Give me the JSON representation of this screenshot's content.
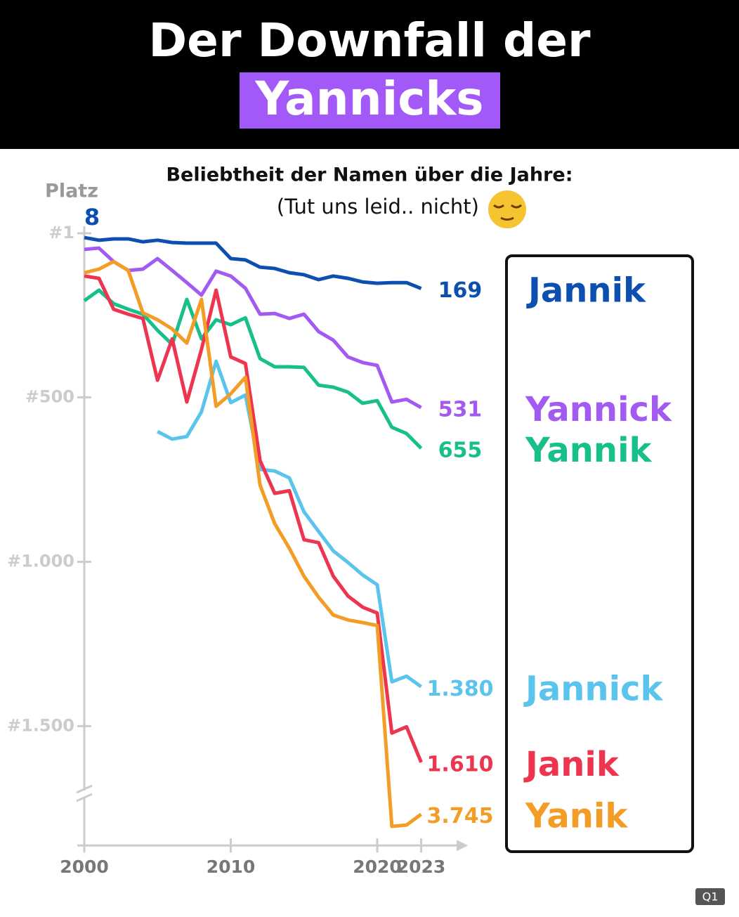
{
  "header": {
    "title": "Der Downfall der",
    "highlight": "Yannicks"
  },
  "badge": "Q1",
  "chart_data": {
    "type": "line",
    "title": "Beliebtheit der Namen über die Jahre:",
    "subtitle": "(Tut uns leid.. nicht)",
    "y_label": "Platz",
    "y_label_mark": "8",
    "x": [
      2000,
      2001,
      2002,
      2003,
      2004,
      2005,
      2006,
      2007,
      2008,
      2009,
      2010,
      2011,
      2012,
      2013,
      2014,
      2015,
      2016,
      2017,
      2018,
      2019,
      2020,
      2021,
      2022,
      2023
    ],
    "xlim": [
      2000,
      2026
    ],
    "xticks": [
      2000,
      2010,
      2020,
      2023
    ],
    "ylim": [
      1,
      3840
    ],
    "inverted": true,
    "ybreak": [
      1700,
      3690
    ],
    "yticks": [
      {
        "value": 1,
        "label": "#1"
      },
      {
        "value": 500,
        "label": "#500"
      },
      {
        "value": 1000,
        "label": "#1.000"
      },
      {
        "value": 1500,
        "label": "#1.500"
      }
    ],
    "series": [
      {
        "name": "Jannik",
        "color": "#0d4fb0",
        "values": [
          14,
          22,
          18,
          18,
          27,
          22,
          29,
          31,
          31,
          31,
          78,
          82,
          104,
          108,
          121,
          127,
          142,
          131,
          138,
          149,
          153,
          151,
          151,
          169
        ],
        "value_labels": [
          null,
          null,
          null,
          null,
          null,
          null,
          null,
          null,
          null,
          null,
          null,
          null,
          null,
          null,
          null,
          null,
          null,
          null,
          null,
          null,
          null,
          null,
          null,
          "169"
        ]
      },
      {
        "name": "Yannick",
        "color": "#a35af0",
        "values": [
          50,
          46,
          87,
          114,
          110,
          78,
          114,
          151,
          189,
          116,
          131,
          168,
          247,
          245,
          260,
          247,
          300,
          326,
          377,
          394,
          403,
          514,
          506,
          531
        ],
        "value_labels": [
          null,
          null,
          null,
          null,
          null,
          null,
          null,
          null,
          null,
          null,
          null,
          null,
          null,
          null,
          null,
          null,
          null,
          null,
          null,
          null,
          null,
          null,
          null,
          "531"
        ]
      },
      {
        "name": "Yannik",
        "color": "#17c08a",
        "values": [
          206,
          174,
          215,
          232,
          247,
          296,
          339,
          202,
          322,
          264,
          279,
          258,
          382,
          407,
          407,
          409,
          463,
          469,
          484,
          518,
          510,
          591,
          610,
          655
        ],
        "value_labels": [
          null,
          null,
          null,
          null,
          null,
          null,
          null,
          null,
          null,
          null,
          null,
          null,
          null,
          null,
          null,
          null,
          null,
          null,
          null,
          null,
          null,
          null,
          null,
          "655"
        ]
      },
      {
        "name": "Jannick",
        "color": "#5bc4ec",
        "values": [
          null,
          null,
          null,
          null,
          null,
          604,
          627,
          619,
          544,
          390,
          516,
          493,
          719,
          724,
          745,
          848,
          908,
          967,
          1002,
          1040,
          1070,
          1365,
          1348,
          1380
        ],
        "value_labels": [
          null,
          null,
          null,
          null,
          null,
          null,
          null,
          null,
          null,
          null,
          null,
          null,
          null,
          null,
          null,
          null,
          null,
          null,
          null,
          null,
          null,
          null,
          null,
          "1.380"
        ]
      },
      {
        "name": "Janik",
        "color": "#ee3550",
        "values": [
          131,
          138,
          232,
          247,
          260,
          448,
          322,
          514,
          354,
          174,
          377,
          397,
          692,
          792,
          784,
          933,
          942,
          1044,
          1104,
          1138,
          1156,
          1521,
          1502,
          1610
        ],
        "value_labels": [
          null,
          null,
          null,
          null,
          null,
          null,
          null,
          null,
          null,
          null,
          null,
          null,
          null,
          null,
          null,
          null,
          null,
          null,
          null,
          null,
          null,
          null,
          null,
          "1.610"
        ]
      },
      {
        "name": "Yanik",
        "color": "#f39c26",
        "values": [
          121,
          110,
          87,
          114,
          243,
          264,
          292,
          335,
          202,
          527,
          489,
          439,
          767,
          884,
          959,
          1044,
          1108,
          1162,
          1177,
          1185,
          1194,
          3782,
          3778,
          3745
        ],
        "value_labels": [
          null,
          null,
          null,
          null,
          null,
          null,
          null,
          null,
          null,
          null,
          null,
          null,
          null,
          null,
          null,
          null,
          null,
          null,
          null,
          null,
          null,
          null,
          null,
          "3.745"
        ]
      }
    ]
  }
}
